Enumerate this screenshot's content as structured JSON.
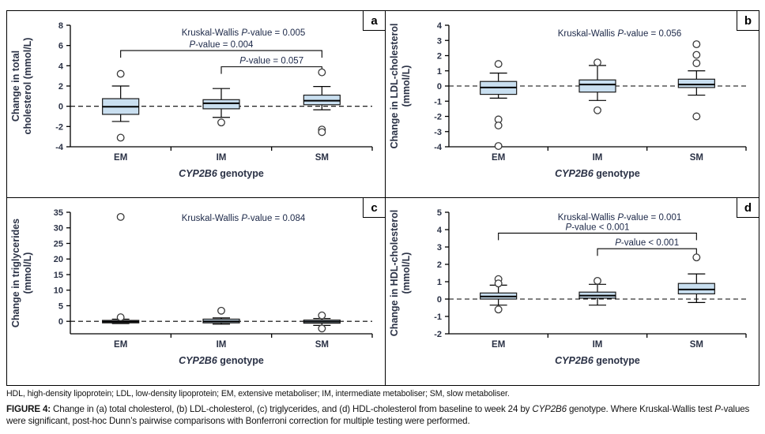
{
  "colors": {
    "box_fill": "#c9dff0",
    "box_stroke": "#1a1a1a",
    "chart_text": "#2a3145",
    "annotation_text": "#1c2848",
    "outlier_stroke": "#3a3a3a",
    "axis": "#000000"
  },
  "footnote": "HDL, high-density lipoprotein; LDL, low-density lipoprotein; EM, extensive metaboliser; IM, intermediate metaboliser; SM, slow metaboliser.",
  "caption": {
    "label": "FIGURE 4:",
    "segments": [
      {
        "t": " Change in (a) total cholesterol, (b) LDL-cholesterol, (c) triglycerides, and (d) HDL-cholesterol from baseline to week 24 by "
      },
      {
        "t": "CYP2B6",
        "i": true
      },
      {
        "t": " genotype. Where Kruskal-Wallis test "
      },
      {
        "t": "P",
        "i": true
      },
      {
        "t": "-values were significant, post-hoc Dunn’s pairwise comparisons with Bonferroni correction for multiple testing were performed."
      }
    ]
  },
  "chart_data": [
    {
      "id": "a",
      "type": "boxplot",
      "ylabel_lines": [
        "Change in total",
        "cholesterol (mmol/L)"
      ],
      "xlabel_segments": [
        {
          "t": "CYP2B6",
          "i": true
        },
        {
          "t": " genotype"
        }
      ],
      "ylim": [
        -4,
        8
      ],
      "tick_min": -4,
      "tick_max": 8,
      "tick_step": 2,
      "categories": [
        "EM",
        "IM",
        "SM"
      ],
      "grid": false,
      "zero_line": true,
      "kw_y": 31,
      "kruskal_wallis": [
        {
          "t": "Kruskal-Wallis "
        },
        {
          "t": "P",
          "i": true
        },
        {
          "t": "-value = 0.005"
        }
      ],
      "series": [
        {
          "label": "EM",
          "whisker_low": -1.5,
          "q1": -0.8,
          "median": -0.05,
          "q3": 0.75,
          "whisker_high": 2.0,
          "outliers": [
            3.2,
            -3.1
          ]
        },
        {
          "label": "IM",
          "whisker_low": -1.1,
          "q1": -0.25,
          "median": 0.3,
          "q3": 0.65,
          "whisker_high": 1.75,
          "outliers": [
            -1.6
          ]
        },
        {
          "label": "SM",
          "whisker_low": -0.35,
          "q1": 0.15,
          "median": 0.55,
          "q3": 1.1,
          "whisker_high": 1.95,
          "outliers": [
            3.35,
            -2.3,
            -2.55
          ]
        }
      ],
      "comparisons": [
        {
          "from": 0,
          "to": 2,
          "y": 5.5,
          "segments": [
            {
              "t": "P",
              "i": true
            },
            {
              "t": "-value = 0.004"
            }
          ]
        },
        {
          "from": 1,
          "to": 2,
          "y": 3.9,
          "segments": [
            {
              "t": "P",
              "i": true
            },
            {
              "t": "-value = 0.057"
            }
          ]
        }
      ]
    },
    {
      "id": "b",
      "type": "boxplot",
      "ylabel_lines": [
        "Change in LDL-cholesterol",
        "(mmol/L)"
      ],
      "xlabel_segments": [
        {
          "t": "CYP2B6",
          "i": true
        },
        {
          "t": " genotype"
        }
      ],
      "ylim": [
        -4,
        4
      ],
      "tick_min": -4,
      "tick_max": 4,
      "tick_step": 1,
      "categories": [
        "EM",
        "IM",
        "SM"
      ],
      "grid": false,
      "zero_line": true,
      "kw_y": 32,
      "kruskal_wallis": [
        {
          "t": "Kruskal-Wallis "
        },
        {
          "t": "P",
          "i": true
        },
        {
          "t": "-value = 0.056"
        }
      ],
      "series": [
        {
          "label": "EM",
          "whisker_low": -0.8,
          "q1": -0.55,
          "median": -0.1,
          "q3": 0.3,
          "whisker_high": 0.85,
          "outliers": [
            1.45,
            -2.2,
            -2.6,
            -3.95
          ]
        },
        {
          "label": "IM",
          "whisker_low": -0.95,
          "q1": -0.4,
          "median": 0.1,
          "q3": 0.4,
          "whisker_high": 1.35,
          "outliers": [
            1.55,
            -1.6
          ]
        },
        {
          "label": "SM",
          "whisker_low": -0.6,
          "q1": -0.1,
          "median": 0.1,
          "q3": 0.45,
          "whisker_high": 1.0,
          "outliers": [
            2.75,
            2.05,
            1.5,
            -2.0
          ]
        }
      ],
      "comparisons": []
    },
    {
      "id": "c",
      "type": "boxplot",
      "ylabel_lines": [
        "Change in triglycerides",
        "(mmol/L)"
      ],
      "xlabel_segments": [
        {
          "t": "CYP2B6",
          "i": true
        },
        {
          "t": " genotype"
        }
      ],
      "ylim": [
        -4,
        35
      ],
      "tick_min": 0,
      "tick_max": 35,
      "tick_step": 5,
      "categories": [
        "EM",
        "IM",
        "SM"
      ],
      "grid": false,
      "zero_line": true,
      "kw_y": 29,
      "kruskal_wallis": [
        {
          "t": "Kruskal-Wallis "
        },
        {
          "t": "P",
          "i": true
        },
        {
          "t": "-value = 0.084"
        }
      ],
      "series": [
        {
          "label": "EM",
          "whisker_low": -0.7,
          "q1": -0.5,
          "median": -0.1,
          "q3": 0.3,
          "whisker_high": 0.7,
          "outliers": [
            33.5,
            1.3
          ]
        },
        {
          "label": "IM",
          "whisker_low": -0.9,
          "q1": -0.5,
          "median": 0.0,
          "q3": 0.7,
          "whisker_high": 1.1,
          "outliers": [
            3.4
          ]
        },
        {
          "label": "SM",
          "whisker_low": -1.3,
          "q1": -0.6,
          "median": -0.1,
          "q3": 0.4,
          "whisker_high": 0.9,
          "outliers": [
            1.9,
            -2.3
          ]
        }
      ],
      "comparisons": []
    },
    {
      "id": "d",
      "type": "boxplot",
      "ylabel_lines": [
        "Change in HDL-cholesterol",
        "(mmol/L)"
      ],
      "xlabel_segments": [
        {
          "t": "CYP2B6",
          "i": true
        },
        {
          "t": " genotype"
        }
      ],
      "ylim": [
        -2,
        5
      ],
      "tick_min": -2,
      "tick_max": 5,
      "tick_step": 1,
      "categories": [
        "EM",
        "IM",
        "SM"
      ],
      "grid": false,
      "zero_line": true,
      "kw_y": 28,
      "kruskal_wallis": [
        {
          "t": "Kruskal-Wallis "
        },
        {
          "t": "P",
          "i": true
        },
        {
          "t": "-value = 0.001"
        }
      ],
      "series": [
        {
          "label": "EM",
          "whisker_low": -0.35,
          "q1": 0.0,
          "median": 0.15,
          "q3": 0.35,
          "whisker_high": 0.8,
          "outliers": [
            1.15,
            0.9,
            -0.6
          ]
        },
        {
          "label": "IM",
          "whisker_low": -0.35,
          "q1": 0.05,
          "median": 0.2,
          "q3": 0.4,
          "whisker_high": 0.85,
          "outliers": [
            1.05
          ]
        },
        {
          "label": "SM",
          "whisker_low": -0.2,
          "q1": 0.3,
          "median": 0.55,
          "q3": 0.9,
          "whisker_high": 1.45,
          "outliers": [
            2.4
          ]
        }
      ],
      "comparisons": [
        {
          "from": 0,
          "to": 2,
          "y": 3.8,
          "segments": [
            {
              "t": "P",
              "i": true
            },
            {
              "t": "-value < 0.001"
            }
          ]
        },
        {
          "from": 1,
          "to": 2,
          "y": 2.9,
          "segments": [
            {
              "t": "P",
              "i": true
            },
            {
              "t": "-value < 0.001"
            }
          ]
        }
      ]
    }
  ]
}
